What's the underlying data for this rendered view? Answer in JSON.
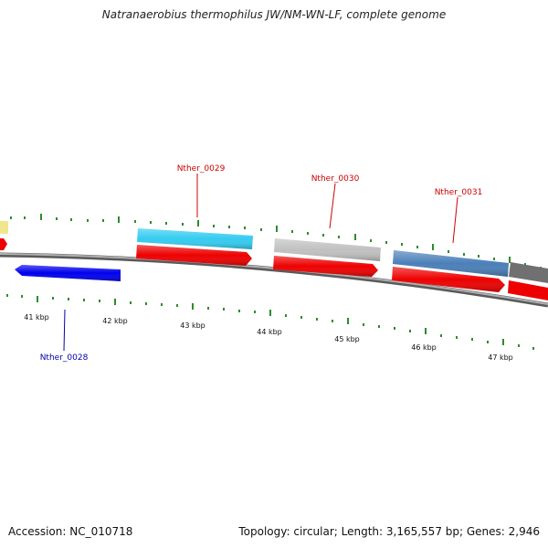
{
  "header": {
    "title": "Natranaerobius thermophilus JW/NM-WN-LF, complete genome"
  },
  "footer": {
    "accession": "Accession: NC_010718",
    "summary": "Topology: circular; Length: 3,165,557 bp; Genes: 2,946"
  },
  "map": {
    "tick_labels": [
      "41 kbp",
      "42 kbp",
      "43 kbp",
      "44 kbp",
      "45 kbp",
      "46 kbp",
      "47 kbp"
    ],
    "genes": [
      {
        "id": "Nther_0028",
        "strand": "reverse",
        "color": "#0000ee",
        "label_color": "#0000aa"
      },
      {
        "id": "Nther_0029",
        "strand": "forward",
        "color": "#33ccf0",
        "label_color": "#cc0000"
      },
      {
        "id": "Nther_0030",
        "strand": "forward",
        "color": "#c0c0c0",
        "label_color": "#cc0000"
      },
      {
        "id": "Nther_0031",
        "strand": "forward",
        "color": "#4a7fb8",
        "label_color": "#cc0000"
      }
    ],
    "colors": {
      "backbone": "#808080",
      "cds": "#ee0000",
      "tick": "#2e8b2e",
      "partial_left_gene": "#f0e68c",
      "partial_right_gene": "#707070"
    }
  }
}
